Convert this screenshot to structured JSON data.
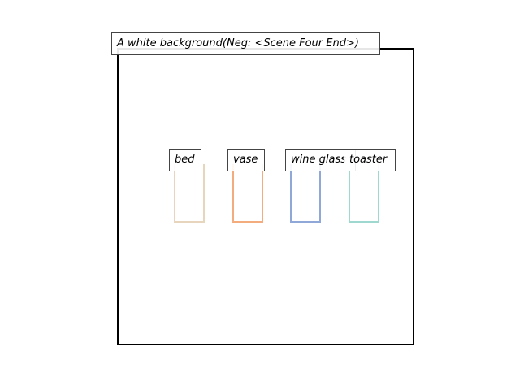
{
  "title": "A white background(Neg: <Scene Four End>)",
  "objects": [
    {
      "label": "bed",
      "color": "#e8d5bd"
    },
    {
      "label": "vase",
      "color": "#f2ac7e"
    },
    {
      "label": "wine glass",
      "color": "#8fa8d8"
    },
    {
      "label": "toaster",
      "color": "#9ed8cf"
    }
  ]
}
